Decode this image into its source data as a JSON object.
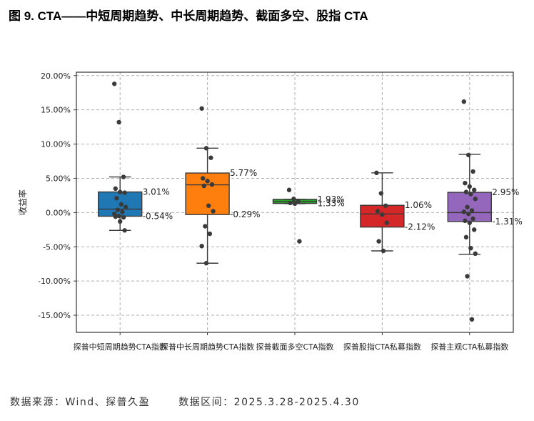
{
  "figure": {
    "title": "图 9. CTA——中短周期趋势、中长周期趋势、截面多空、股指 CTA"
  },
  "footer": {
    "source": "数据来源：Wind、探普久盈",
    "period": "数据区间：2025.3.28-2025.4.30"
  },
  "chart_data": {
    "type": "box",
    "ylabel": "收益率",
    "ylim": [
      -17.5,
      20.5
    ],
    "yticks": [
      20,
      15,
      10,
      5,
      0,
      -5,
      -10,
      -15
    ],
    "ytick_labels": [
      "20.00%",
      "15.00%",
      "10.00%",
      "5.00%",
      "0.00%",
      "-5.00%",
      "-10.00%",
      "-15.00%"
    ],
    "grid": true,
    "categories": [
      "探普中短周期趋势CTA指数",
      "探普中长周期趋势CTA指数",
      "探普截面多空CTA指数",
      "探普股指CTA私募指数",
      "探普主观CTA私募指数"
    ],
    "series": [
      {
        "color": "#1f77b4",
        "q1": -0.54,
        "median": 0.5,
        "q3": 3.01,
        "whisker_low": -2.6,
        "whisker_high": 5.2,
        "q1_label": "-0.54%",
        "q3_label": "3.01%",
        "points": [
          18.8,
          13.2,
          5.2,
          3.5,
          3.0,
          2.9,
          2.1,
          1.2,
          0.8,
          0.4,
          0.1,
          -0.2,
          -0.5,
          -0.7,
          -0.6,
          -1.3,
          -2.6
        ]
      },
      {
        "color": "#ff7f0e",
        "q1": -0.29,
        "median": 4.05,
        "q3": 5.77,
        "whisker_low": -7.4,
        "whisker_high": 9.4,
        "q1_label": "-0.29%",
        "q3_label": "5.77%",
        "points": [
          15.2,
          9.4,
          8.0,
          5.0,
          4.6,
          4.1,
          3.9,
          1.0,
          0.2,
          -2.0,
          -3.1,
          -4.9,
          -7.4
        ]
      },
      {
        "color": "#2ca02c",
        "q1": 1.33,
        "median": 1.6,
        "q3": 1.93,
        "whisker_low": 1.3,
        "whisker_high": 1.95,
        "q1_label": "1.33%",
        "q3_label": "1.93%",
        "points": [
          3.3,
          2.0,
          1.6,
          1.4,
          1.3,
          -4.2
        ]
      },
      {
        "color": "#d62728",
        "q1": -2.12,
        "median": -0.2,
        "q3": 1.06,
        "whisker_low": -5.6,
        "whisker_high": 5.8,
        "q1_label": "-2.12%",
        "q3_label": "1.06%",
        "points": [
          5.8,
          2.8,
          1.0,
          0.2,
          -0.3,
          -1.5,
          -4.2,
          -5.6
        ]
      },
      {
        "color": "#9467bd",
        "q1": -1.31,
        "median": 0.0,
        "q3": 2.95,
        "whisker_low": -6.1,
        "whisker_high": 8.5,
        "q1_label": "-1.31%",
        "q3_label": "2.95%",
        "points": [
          16.2,
          8.4,
          6.0,
          4.3,
          3.8,
          3.3,
          3.0,
          2.7,
          2.0,
          0.8,
          0.3,
          0.1,
          -0.2,
          -0.9,
          -1.2,
          -1.5,
          -2.5,
          -3.6,
          -5.2,
          -6.0,
          -9.3,
          -15.6
        ]
      }
    ]
  }
}
